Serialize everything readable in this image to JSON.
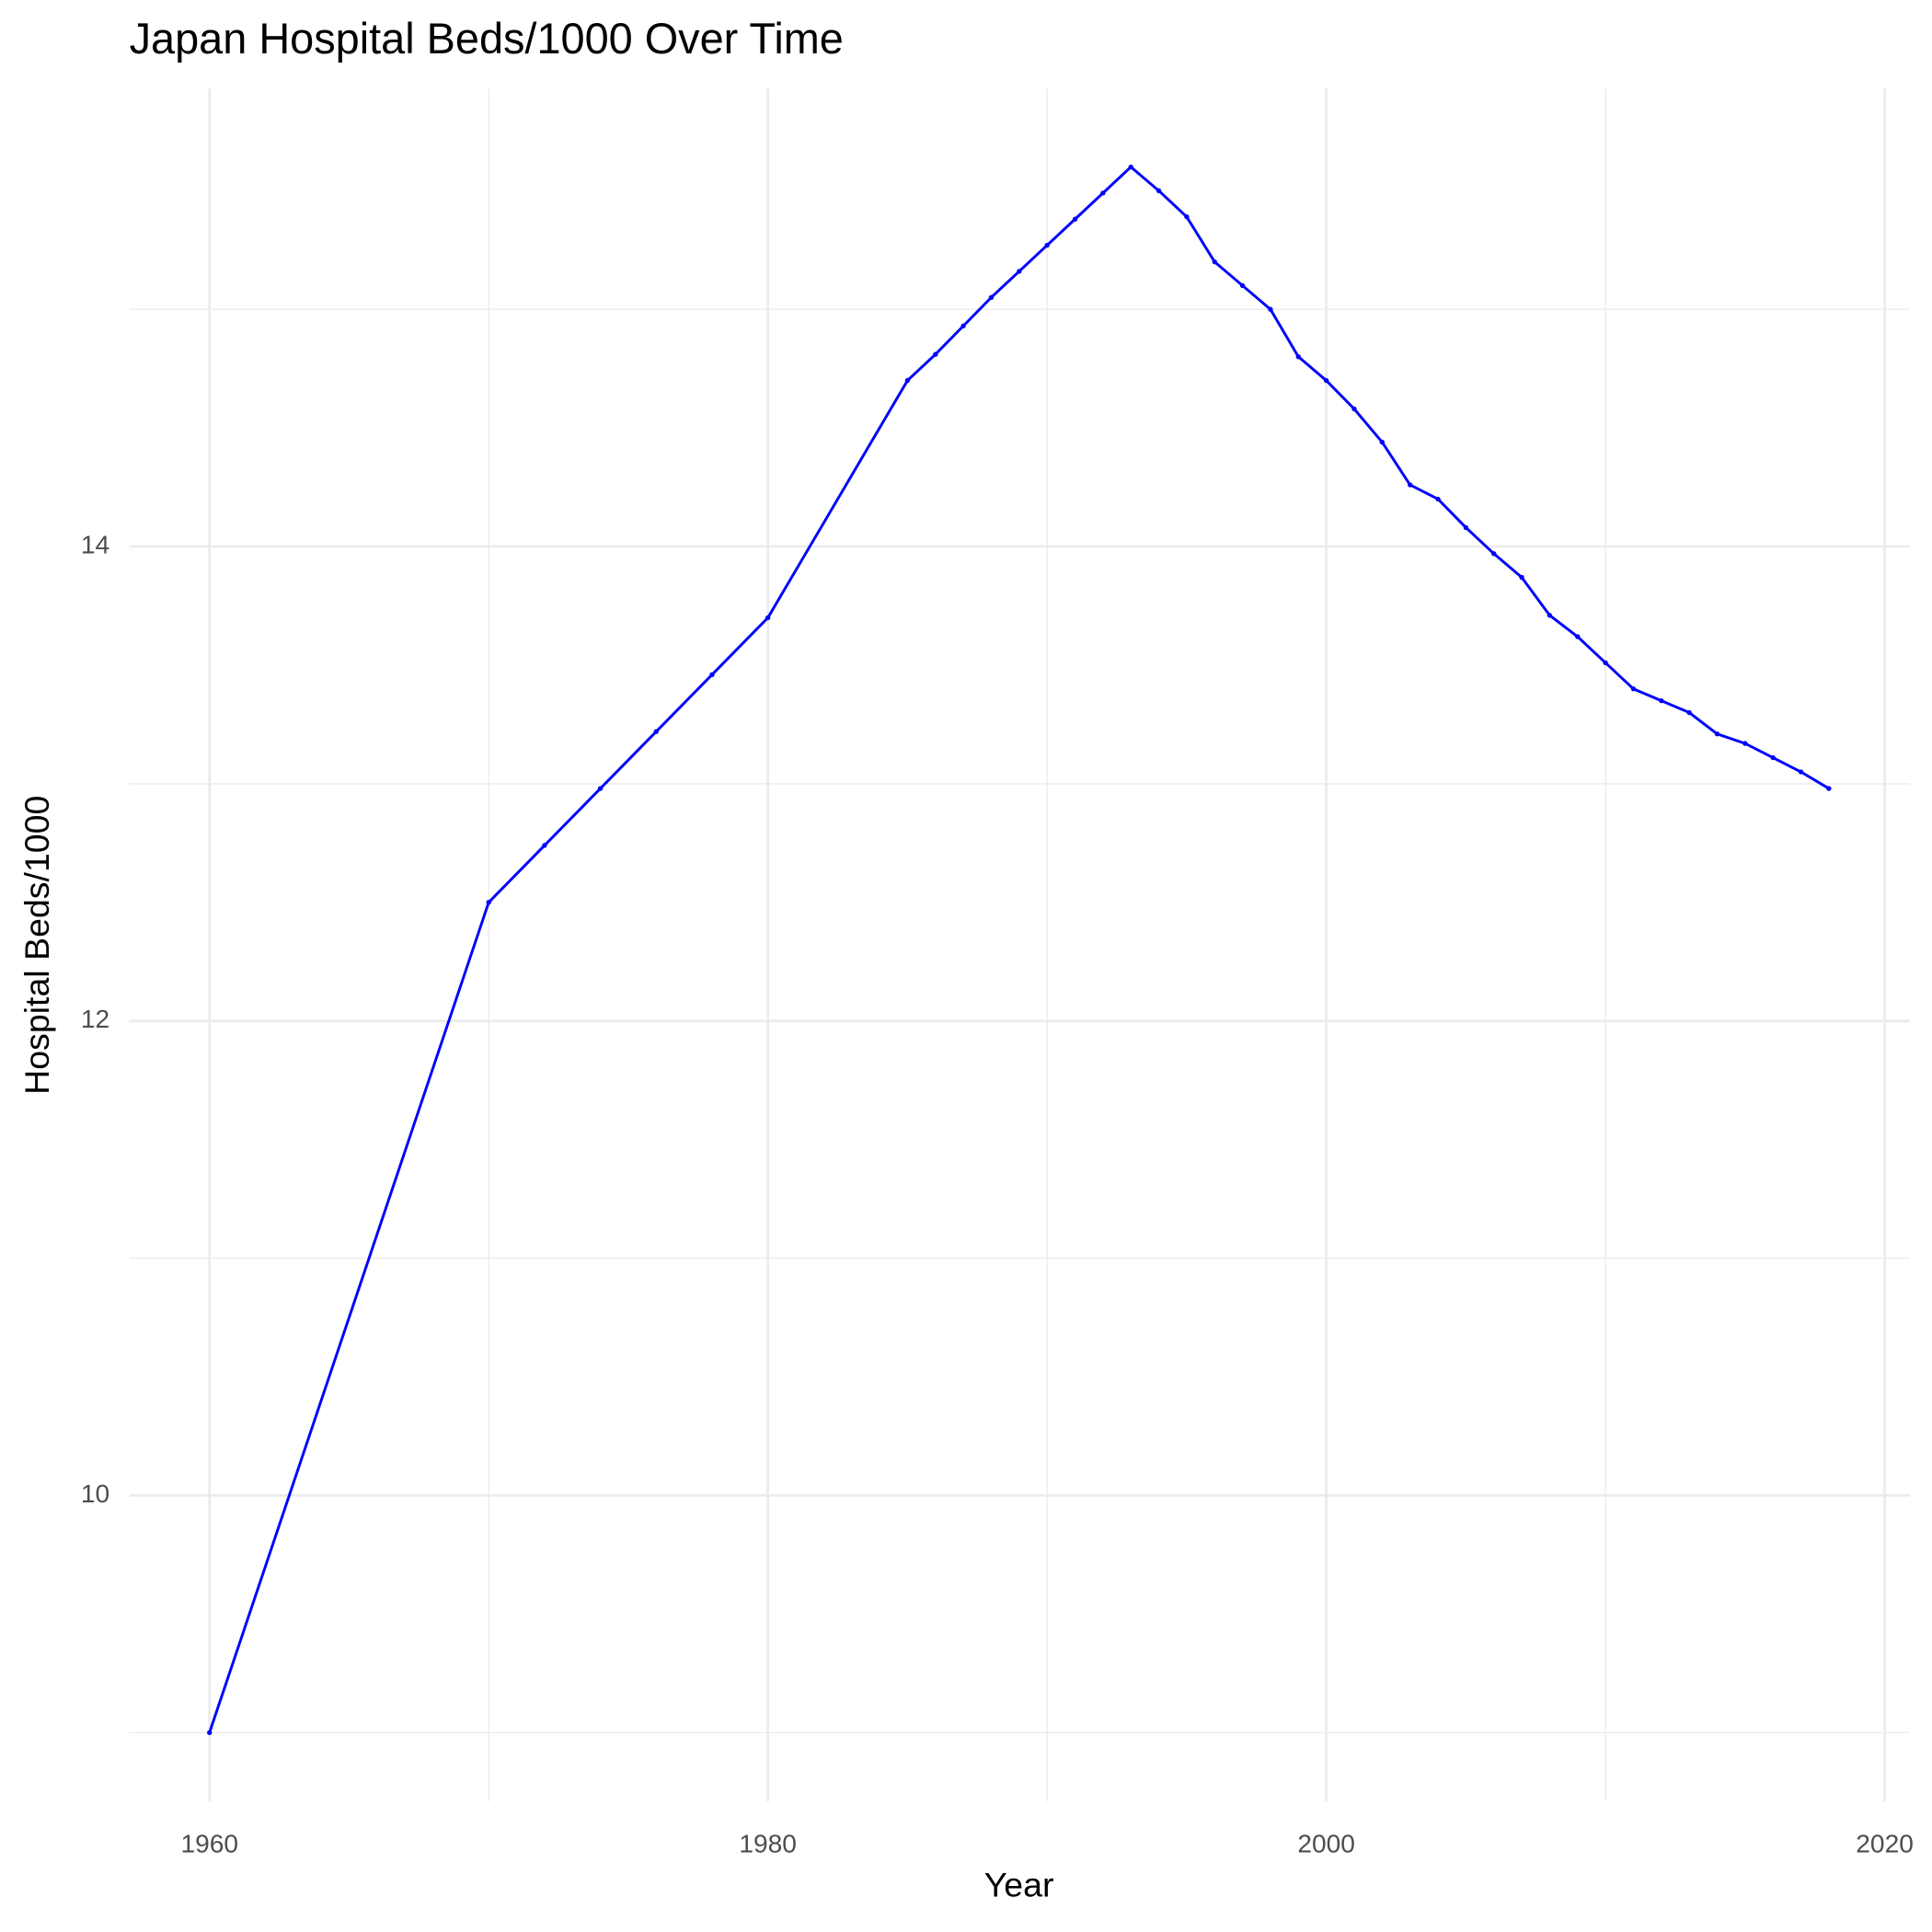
{
  "chart_data": {
    "type": "line",
    "title": "Japan Hospital Beds/1000 Over Time",
    "x_label": "Year",
    "y_label": "Hospital Beds/1000",
    "x": [
      1960,
      1970,
      1972,
      1974,
      1976,
      1978,
      1980,
      1985,
      1986,
      1987,
      1988,
      1989,
      1990,
      1991,
      1992,
      1993,
      1994,
      1995,
      1996,
      1997,
      1998,
      1999,
      2000,
      2001,
      2002,
      2003,
      2004,
      2005,
      2006,
      2007,
      2008,
      2009,
      2010,
      2011,
      2012,
      2013,
      2014,
      2015,
      2016,
      2017,
      2018
    ],
    "series": [
      {
        "name": "Hospital Beds/1000",
        "color": "#0000ff",
        "values": [
          9.0,
          12.5,
          12.74,
          12.98,
          13.22,
          13.46,
          13.7,
          14.7,
          14.81,
          14.93,
          15.05,
          15.16,
          15.27,
          15.38,
          15.49,
          15.6,
          15.5,
          15.39,
          15.2,
          15.1,
          15.0,
          14.8,
          14.7,
          14.58,
          14.44,
          14.26,
          14.2,
          14.08,
          13.97,
          13.87,
          13.71,
          13.62,
          13.51,
          13.4,
          13.35,
          13.3,
          13.21,
          13.17,
          13.11,
          13.05,
          12.98
        ]
      }
    ],
    "xlim": [
      1957.13,
      2020.9
    ],
    "xticks": [
      1960,
      1980,
      2000,
      2020
    ],
    "x_minor_ticks": [
      1970,
      1990,
      2010
    ],
    "ylim": [
      8.71,
      15.93
    ],
    "yticks": [
      10,
      12,
      14
    ],
    "y_minor_ticks": [
      9,
      11,
      13,
      15
    ],
    "grid": true
  }
}
